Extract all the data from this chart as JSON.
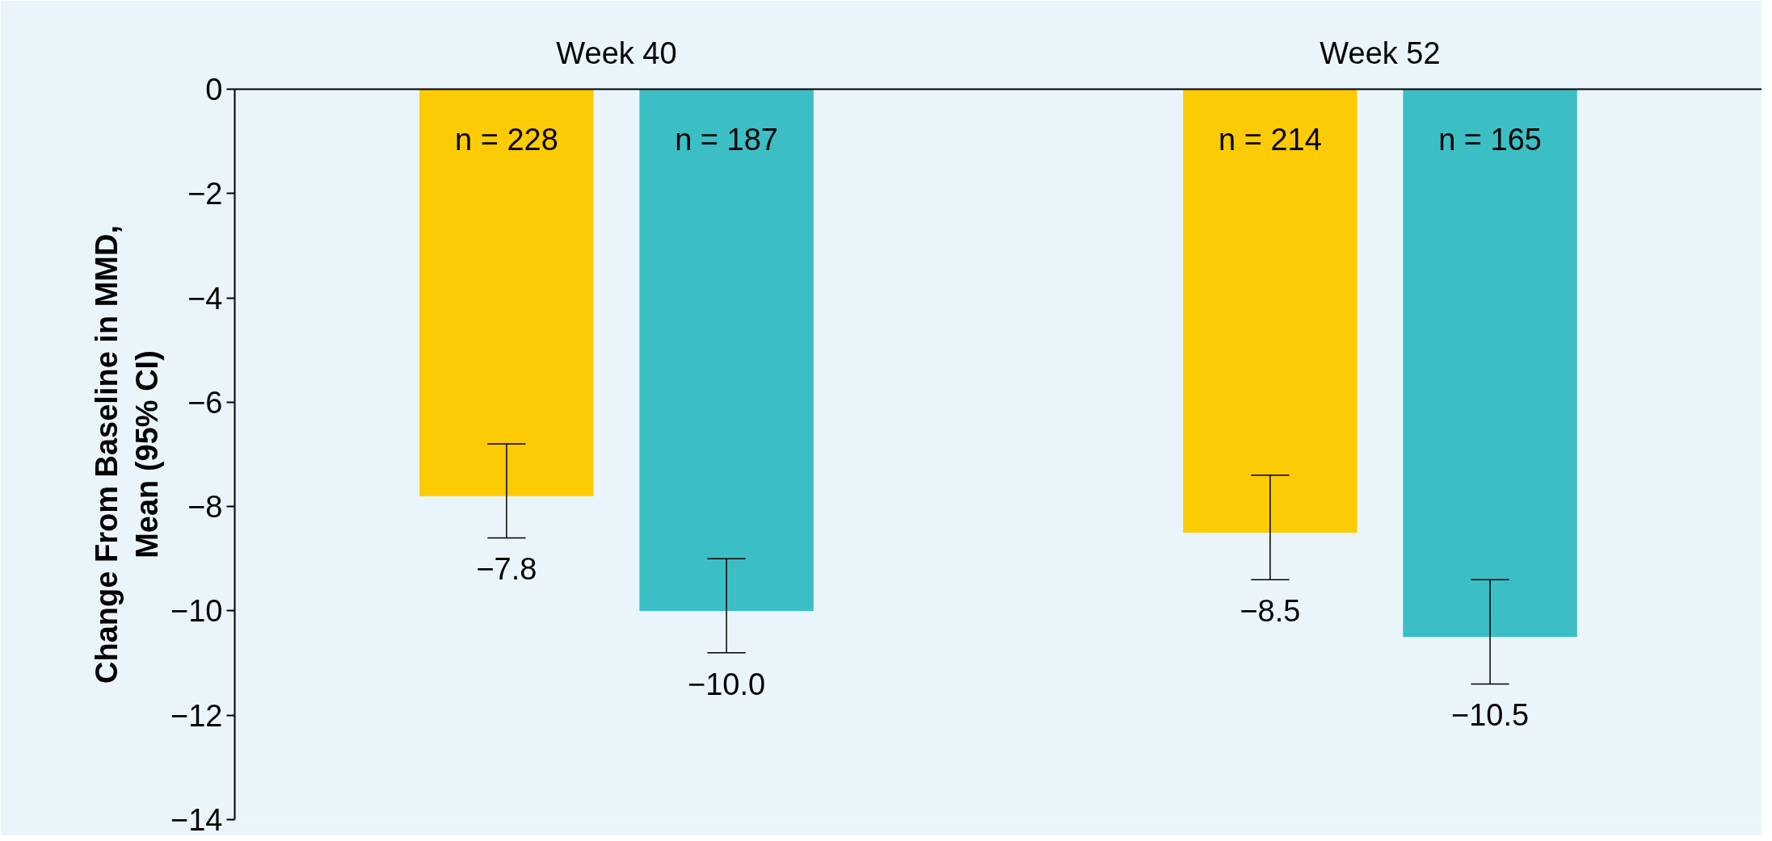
{
  "chart_data": {
    "type": "bar",
    "categories": [
      "Week 40",
      "Week 52"
    ],
    "ylabel": "Change From Baseline in MMD,\nMean (95% CI)",
    "ylim": [
      -14,
      0
    ],
    "yticks": [
      {
        "value": 0,
        "label": "0"
      },
      {
        "value": -2,
        "label": "−2"
      },
      {
        "value": -4,
        "label": "−4"
      },
      {
        "value": -6,
        "label": "−6"
      },
      {
        "value": -8,
        "label": "−8"
      },
      {
        "value": -10,
        "label": "−10"
      },
      {
        "value": -12,
        "label": "−12"
      },
      {
        "value": -14,
        "label": "−14"
      }
    ],
    "series": [
      {
        "color": "#fdcb04",
        "values": [
          -7.8,
          -8.5
        ],
        "errors": [
          [
            -8.6,
            -6.8
          ],
          [
            -9.4,
            -7.4
          ]
        ],
        "value_labels": [
          "−7.8",
          "−8.5"
        ]
      },
      {
        "color": "#3bbfc4",
        "values": [
          -10.0,
          -10.5
        ],
        "errors": [
          [
            -10.8,
            -9.0
          ],
          [
            -11.4,
            -9.4
          ]
        ],
        "value_labels": [
          "−10.0",
          "−10.5"
        ]
      }
    ],
    "annotations": [
      "n = 228",
      "n = 187",
      "n = 214",
      "n = 165"
    ],
    "grid": false
  }
}
